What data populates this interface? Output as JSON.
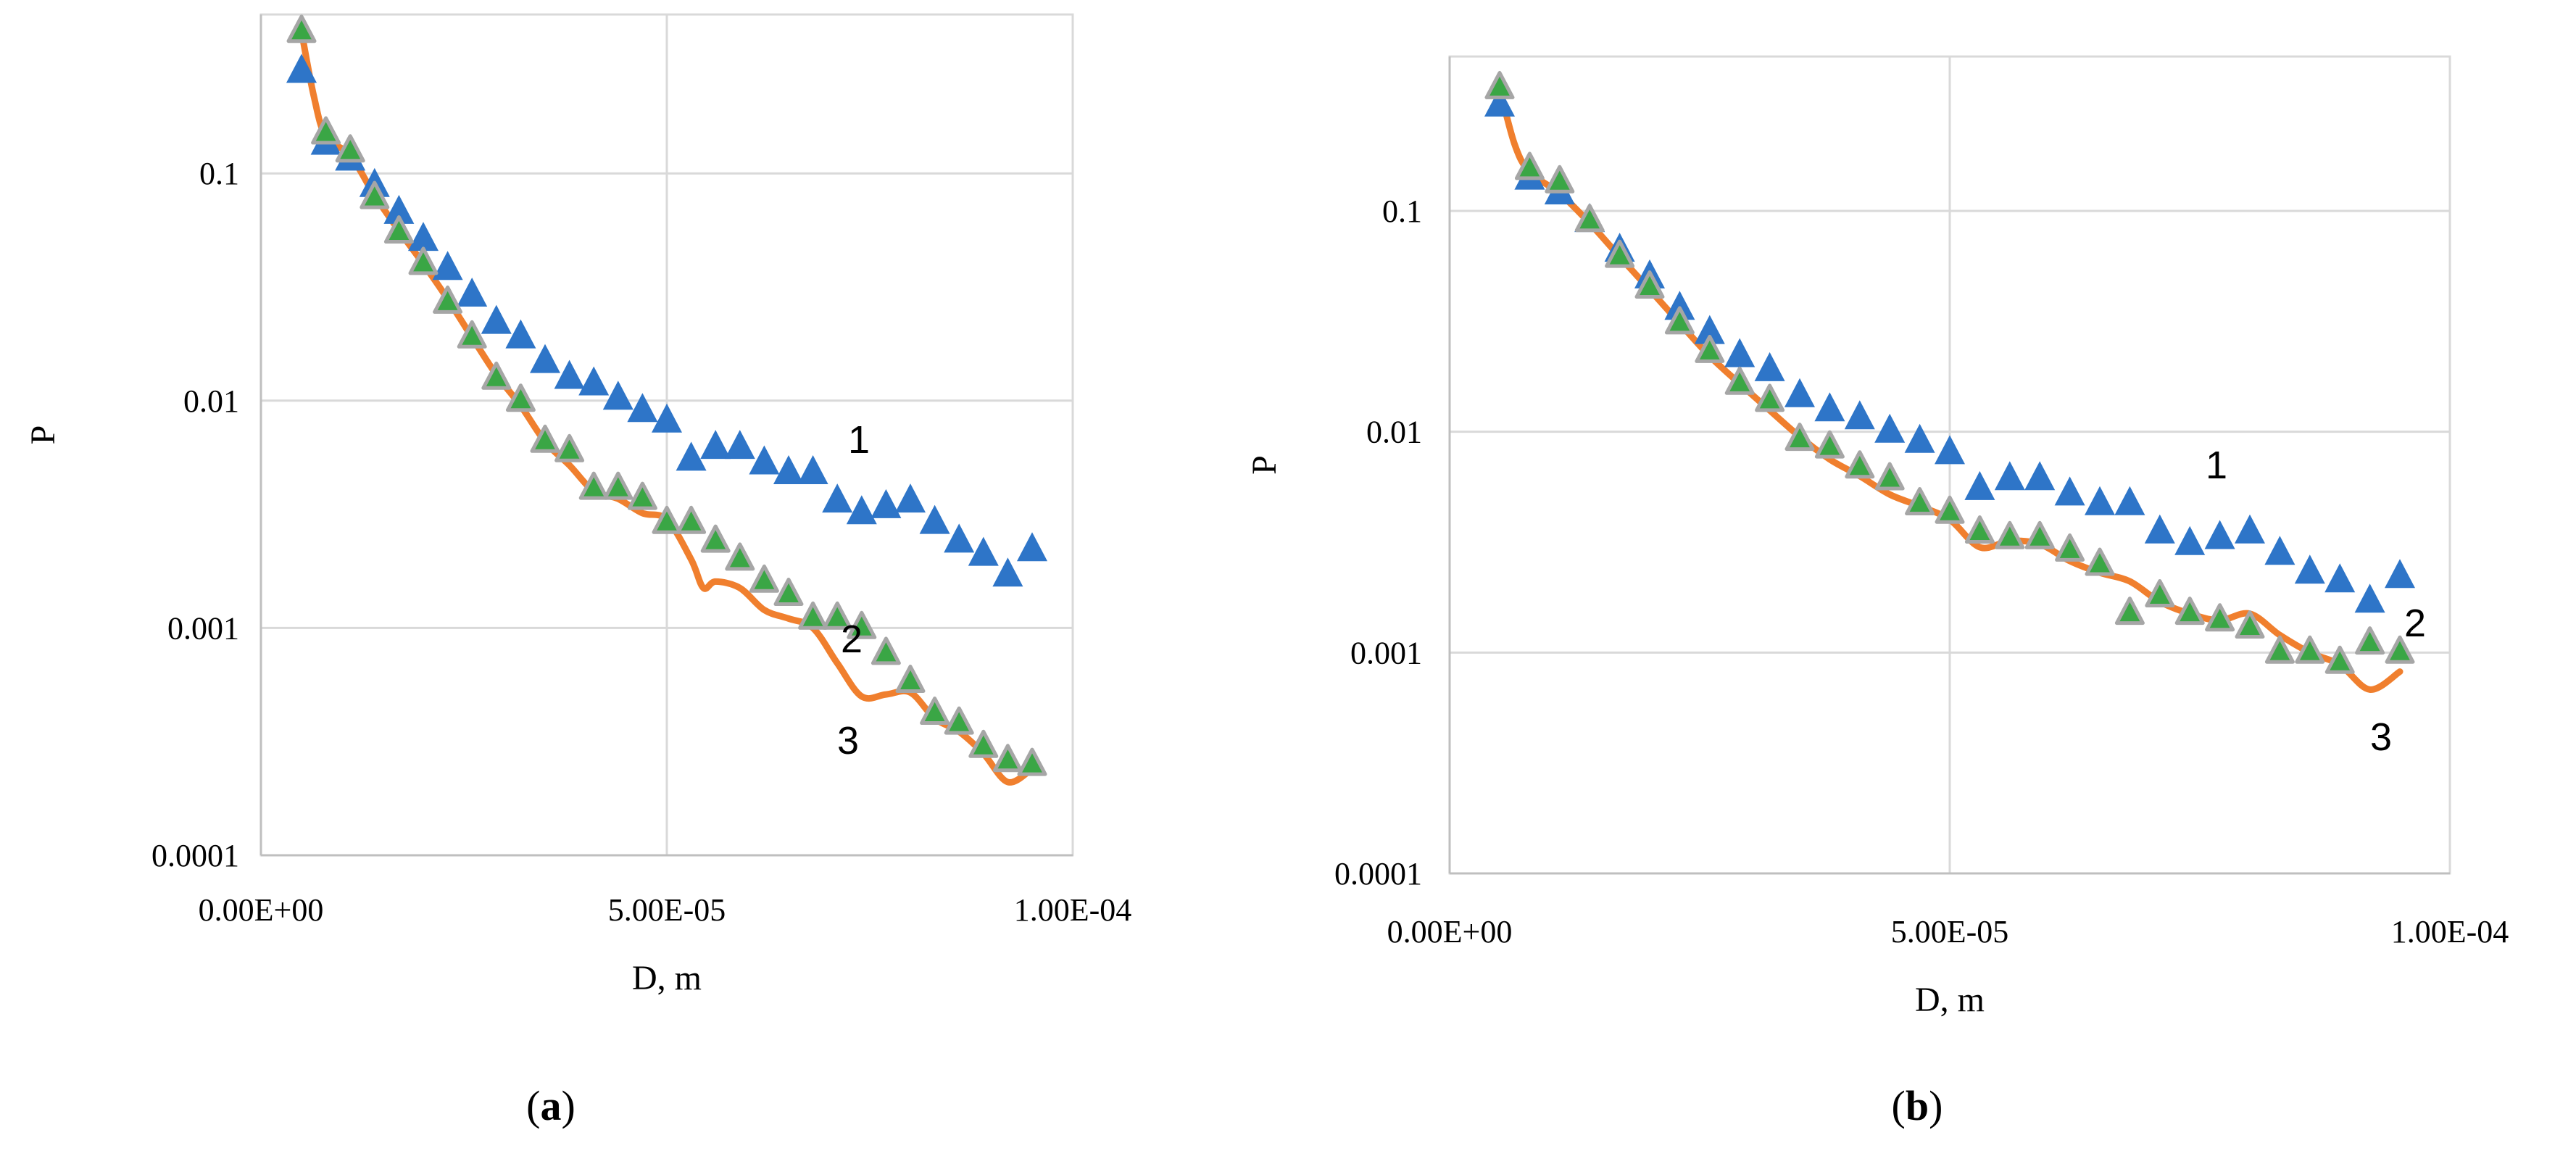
{
  "chart_data": [
    {
      "type": "scatter",
      "panel_label": "a",
      "xlabel": "D, m",
      "ylabel": "P",
      "yscale": "log",
      "xlim": [
        0,
        0.0001
      ],
      "ylim": [
        0.0001,
        0.5
      ],
      "x_ticks": [
        "0.00E+00",
        "5.00E-05",
        "1.00E-04"
      ],
      "x_tick_values": [
        0,
        5e-05,
        0.0001
      ],
      "y_ticks": [
        "0.0001",
        "0.001",
        "0.01",
        "0.1"
      ],
      "y_tick_values": [
        0.0001,
        0.001,
        0.01,
        0.1
      ],
      "grid": true,
      "series": [
        {
          "name": "1",
          "marker": "triangle",
          "color": "#2E75C8",
          "x": [
            5e-06,
            8e-06,
            1.1e-05,
            1.4e-05,
            1.7e-05,
            2e-05,
            2.3e-05,
            2.6e-05,
            2.9e-05,
            3.2e-05,
            3.5e-05,
            3.8e-05,
            4.1e-05,
            4.4e-05,
            4.7e-05,
            5e-05,
            5.3e-05,
            5.6e-05,
            5.9e-05,
            6.2e-05,
            6.5e-05,
            6.8e-05,
            7.1e-05,
            7.4e-05,
            7.7e-05,
            8e-05,
            8.3e-05,
            8.6e-05,
            8.9e-05,
            9.2e-05,
            9.5e-05
          ],
          "y": [
            0.28,
            0.135,
            0.115,
            0.088,
            0.067,
            0.051,
            0.038,
            0.029,
            0.022,
            0.019,
            0.0148,
            0.0126,
            0.0118,
            0.0102,
            0.009,
            0.0081,
            0.0055,
            0.0062,
            0.0062,
            0.0053,
            0.0048,
            0.0048,
            0.0036,
            0.0032,
            0.0034,
            0.0036,
            0.0029,
            0.0024,
            0.0021,
            0.0017,
            0.0022
          ]
        },
        {
          "name": "2",
          "marker": "triangle",
          "color": "#3AA645",
          "x": [
            5e-06,
            8e-06,
            1.1e-05,
            1.4e-05,
            1.7e-05,
            2e-05,
            2.3e-05,
            2.6e-05,
            2.9e-05,
            3.2e-05,
            3.5e-05,
            3.8e-05,
            4.1e-05,
            4.4e-05,
            4.7e-05,
            5e-05,
            5.3e-05,
            5.6e-05,
            5.9e-05,
            6.2e-05,
            6.5e-05,
            6.8e-05,
            7.1e-05,
            7.4e-05,
            7.7e-05,
            8e-05,
            8.3e-05,
            8.6e-05,
            8.9e-05,
            9.2e-05,
            9.5e-05
          ],
          "y": [
            0.42,
            0.15,
            0.125,
            0.078,
            0.055,
            0.04,
            0.027,
            0.019,
            0.0125,
            0.01,
            0.0066,
            0.006,
            0.0041,
            0.0041,
            0.0037,
            0.0029,
            0.0029,
            0.0024,
            0.002,
            0.0016,
            0.0014,
            0.0011,
            0.0011,
            0.001,
            0.00077,
            0.00058,
            0.00042,
            0.00038,
            0.0003,
            0.00026,
            0.00025
          ]
        },
        {
          "name": "3",
          "marker": "line",
          "color": "#F07F2E",
          "x": [
            5e-06,
            6.5e-06,
            8e-06,
            1.1e-05,
            1.4e-05,
            1.7e-05,
            2e-05,
            2.3e-05,
            2.6e-05,
            2.9e-05,
            3.2e-05,
            3.5e-05,
            3.8e-05,
            4.1e-05,
            4.4e-05,
            4.7e-05,
            5e-05,
            5.3e-05,
            5.45e-05,
            5.6e-05,
            5.9e-05,
            6.2e-05,
            6.5e-05,
            6.8e-05,
            7.1e-05,
            7.4e-05,
            7.7e-05,
            8e-05,
            8.3e-05,
            8.6e-05,
            8.9e-05,
            9.2e-05,
            9.5e-05
          ],
          "y": [
            0.42,
            0.22,
            0.145,
            0.12,
            0.08,
            0.056,
            0.04,
            0.028,
            0.019,
            0.013,
            0.0095,
            0.0066,
            0.0052,
            0.004,
            0.0037,
            0.0032,
            0.003,
            0.002,
            0.0015,
            0.0016,
            0.0015,
            0.0012,
            0.0011,
            0.001,
            0.0007,
            0.0005,
            0.00051,
            0.00052,
            0.0004,
            0.00035,
            0.00028,
            0.00021,
            0.00024
          ]
        }
      ],
      "annotations": [
        "1",
        "2",
        "3"
      ]
    },
    {
      "type": "scatter",
      "panel_label": "b",
      "xlabel": "D, m",
      "ylabel": "P",
      "yscale": "log",
      "xlim": [
        0,
        0.0001
      ],
      "ylim": [
        0.0001,
        0.5
      ],
      "x_ticks": [
        "0.00E+00",
        "5.00E-05",
        "1.00E-04"
      ],
      "x_tick_values": [
        0,
        5e-05,
        0.0001
      ],
      "y_ticks": [
        "0.0001",
        "0.001",
        "0.01",
        "0.1"
      ],
      "y_tick_values": [
        0.0001,
        0.001,
        0.01,
        0.1
      ],
      "grid": true,
      "series": [
        {
          "name": "1",
          "marker": "triangle",
          "color": "#2E75C8",
          "x": [
            5e-06,
            8e-06,
            1.1e-05,
            1.4e-05,
            1.7e-05,
            2e-05,
            2.3e-05,
            2.6e-05,
            2.9e-05,
            3.2e-05,
            3.5e-05,
            3.8e-05,
            4.1e-05,
            4.4e-05,
            4.7e-05,
            5e-05,
            5.3e-05,
            5.6e-05,
            5.9e-05,
            6.2e-05,
            6.5e-05,
            6.8e-05,
            7.1e-05,
            7.4e-05,
            7.7e-05,
            8e-05,
            8.3e-05,
            8.6e-05,
            8.9e-05,
            9.2e-05,
            9.5e-05
          ],
          "y": [
            0.3,
            0.14,
            0.12,
            0.09,
            0.066,
            0.05,
            0.036,
            0.028,
            0.022,
            0.019,
            0.0145,
            0.0125,
            0.0115,
            0.01,
            0.009,
            0.008,
            0.0055,
            0.0061,
            0.0061,
            0.0052,
            0.0047,
            0.0047,
            0.0035,
            0.0031,
            0.0033,
            0.0035,
            0.0028,
            0.0023,
            0.0021,
            0.0017,
            0.0022
          ]
        },
        {
          "name": "2",
          "marker": "triangle",
          "color": "#3AA645",
          "x": [
            5e-06,
            8e-06,
            1.1e-05,
            1.4e-05,
            1.7e-05,
            2e-05,
            2.3e-05,
            2.6e-05,
            2.9e-05,
            3.2e-05,
            3.5e-05,
            3.8e-05,
            4.1e-05,
            4.4e-05,
            4.7e-05,
            5e-05,
            5.3e-05,
            5.6e-05,
            5.9e-05,
            6.2e-05,
            6.5e-05,
            6.8e-05,
            7.1e-05,
            7.4e-05,
            7.7e-05,
            8e-05,
            8.3e-05,
            8.6e-05,
            8.9e-05,
            9.2e-05,
            9.5e-05
          ],
          "y": [
            0.36,
            0.155,
            0.135,
            0.09,
            0.062,
            0.045,
            0.031,
            0.023,
            0.0165,
            0.0138,
            0.0092,
            0.0085,
            0.0069,
            0.0061,
            0.0047,
            0.0043,
            0.0035,
            0.0033,
            0.0033,
            0.0029,
            0.0025,
            0.0015,
            0.0018,
            0.0015,
            0.0014,
            0.0013,
            0.001,
            0.001,
            0.0009,
            0.0011,
            0.001
          ]
        },
        {
          "name": "3",
          "marker": "line",
          "color": "#F07F2E",
          "x": [
            5e-06,
            6.5e-06,
            8e-06,
            1.1e-05,
            1.4e-05,
            1.7e-05,
            2e-05,
            2.3e-05,
            2.6e-05,
            2.9e-05,
            3.2e-05,
            3.5e-05,
            3.8e-05,
            4.1e-05,
            4.4e-05,
            4.7e-05,
            5e-05,
            5.3e-05,
            5.6e-05,
            5.9e-05,
            6.2e-05,
            6.5e-05,
            6.8e-05,
            7.1e-05,
            7.4e-05,
            7.7e-05,
            8e-05,
            8.3e-05,
            8.6e-05,
            8.9e-05,
            9.2e-05,
            9.5e-05
          ],
          "y": [
            0.36,
            0.2,
            0.15,
            0.12,
            0.088,
            0.062,
            0.044,
            0.031,
            0.022,
            0.0165,
            0.0125,
            0.0095,
            0.0075,
            0.0063,
            0.0052,
            0.0046,
            0.004,
            0.003,
            0.0032,
            0.0031,
            0.0026,
            0.0023,
            0.0021,
            0.0017,
            0.0015,
            0.0014,
            0.0015,
            0.0012,
            0.001,
            0.00088,
            0.00068,
            0.00082
          ]
        }
      ],
      "annotations": [
        "1",
        "2",
        "3"
      ]
    }
  ]
}
